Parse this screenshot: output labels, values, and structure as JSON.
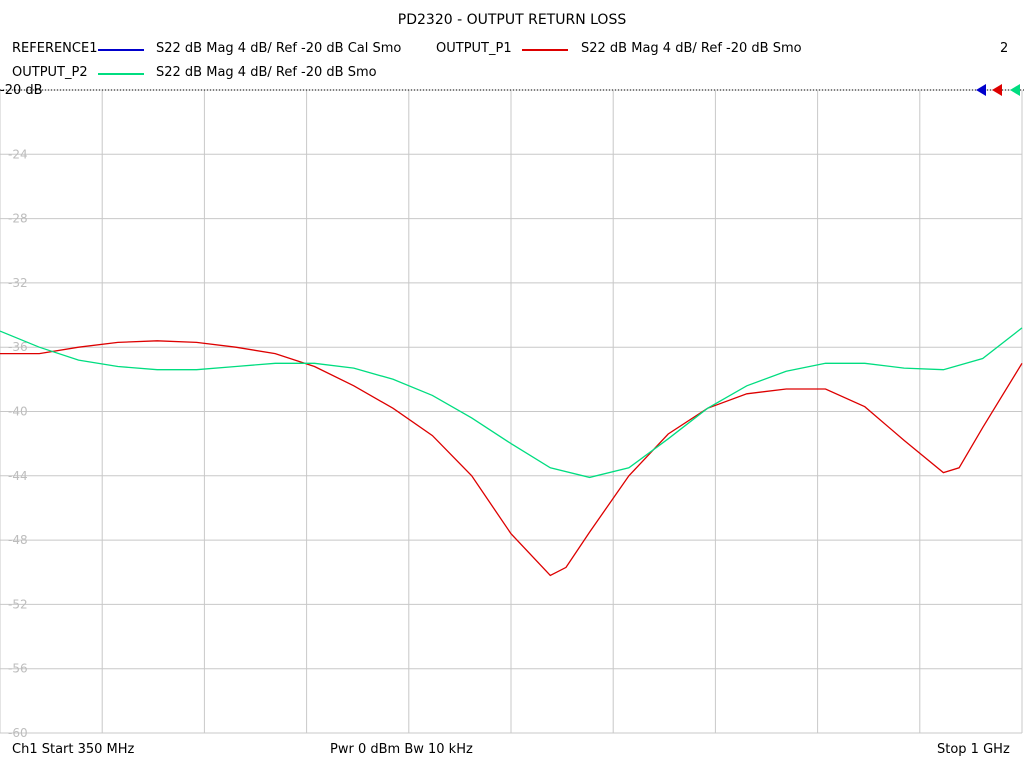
{
  "title": "PD2320 - OUTPUT RETURN LOSS",
  "legend": [
    {
      "name": "REFERENCE1",
      "desc": "S22  dB Mag  4 dB/ Ref -20 dB  Cal Smo",
      "color": "#0000cc"
    },
    {
      "name": "OUTPUT_P1",
      "desc": "S22  dB Mag  4 dB/ Ref -20 dB  Smo",
      "color": "#dd0000"
    },
    {
      "name": "OUTPUT_P2",
      "desc": "S22  dB Mag  4 dB/ Ref -20 dB  Smo",
      "color": "#00dd80"
    }
  ],
  "trace_count_label": "2",
  "ref_label": "-20 dB",
  "footer": {
    "start": "Ch1  Start  350 MHz",
    "center": "Pwr  0 dBm  Bw  10 kHz",
    "stop": "Stop  1 GHz"
  },
  "chart_data": {
    "type": "line",
    "title": "PD2320 - OUTPUT RETURN LOSS",
    "xlim": [
      350,
      1000
    ],
    "x_unit": "MHz",
    "ylim": [
      -60,
      -20
    ],
    "y_ticks": [
      "-20",
      "-24",
      "-28",
      "-32",
      "-36",
      "-40",
      "-44",
      "-48",
      "-52",
      "-56",
      "-60"
    ],
    "grid": true,
    "legend_position": "top",
    "series": [
      {
        "name": "OUTPUT_P1",
        "color": "#dd0000",
        "x": [
          350,
          375,
          400,
          425,
          450,
          475,
          500,
          525,
          550,
          575,
          600,
          625,
          650,
          675,
          700,
          710,
          725,
          750,
          775,
          800,
          825,
          850,
          875,
          900,
          925,
          950,
          960,
          975,
          1000
        ],
        "y": [
          -36.4,
          -36.4,
          -36.0,
          -35.7,
          -35.6,
          -35.7,
          -36.0,
          -36.4,
          -37.2,
          -38.4,
          -39.8,
          -41.5,
          -44.0,
          -47.6,
          -50.2,
          -49.7,
          -47.5,
          -44.0,
          -41.4,
          -39.8,
          -38.9,
          -38.6,
          -38.6,
          -39.7,
          -41.8,
          -43.8,
          -43.5,
          -41.0,
          -37.0
        ]
      },
      {
        "name": "OUTPUT_P2",
        "color": "#00dd80",
        "x": [
          350,
          375,
          400,
          425,
          450,
          475,
          500,
          525,
          550,
          575,
          600,
          625,
          650,
          675,
          700,
          725,
          750,
          775,
          800,
          825,
          850,
          875,
          900,
          925,
          950,
          975,
          1000
        ],
        "y": [
          -35.0,
          -36.0,
          -36.8,
          -37.2,
          -37.4,
          -37.4,
          -37.2,
          -37.0,
          -37.0,
          -37.3,
          -38.0,
          -39.0,
          -40.4,
          -42.0,
          -43.5,
          -44.1,
          -43.5,
          -41.7,
          -39.8,
          -38.4,
          -37.5,
          -37.0,
          -37.0,
          -37.3,
          -37.4,
          -36.7,
          -34.8
        ]
      }
    ]
  }
}
